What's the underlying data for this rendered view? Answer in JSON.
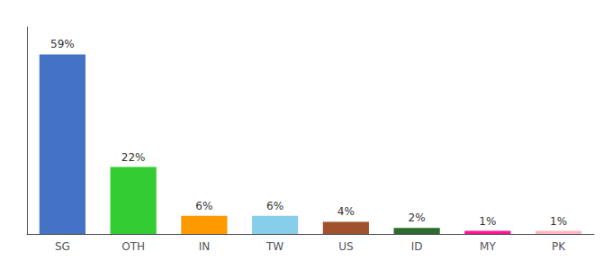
{
  "chart_data": {
    "type": "bar",
    "categories": [
      "SG",
      "OTH",
      "IN",
      "TW",
      "US",
      "ID",
      "MY",
      "PK"
    ],
    "values": [
      59,
      22,
      6,
      6,
      4,
      2,
      1,
      1
    ],
    "value_labels": [
      "59%",
      "22%",
      "6%",
      "6%",
      "4%",
      "2%",
      "1%",
      "1%"
    ],
    "colors": [
      "#4472C4",
      "#33CC33",
      "#FF9900",
      "#87CEEB",
      "#A0522D",
      "#2D6A2D",
      "#FF1493",
      "#FFB6C1"
    ],
    "ylim": [
      0,
      68
    ],
    "data_labels": true,
    "tick_labels": "x",
    "grid": false
  }
}
